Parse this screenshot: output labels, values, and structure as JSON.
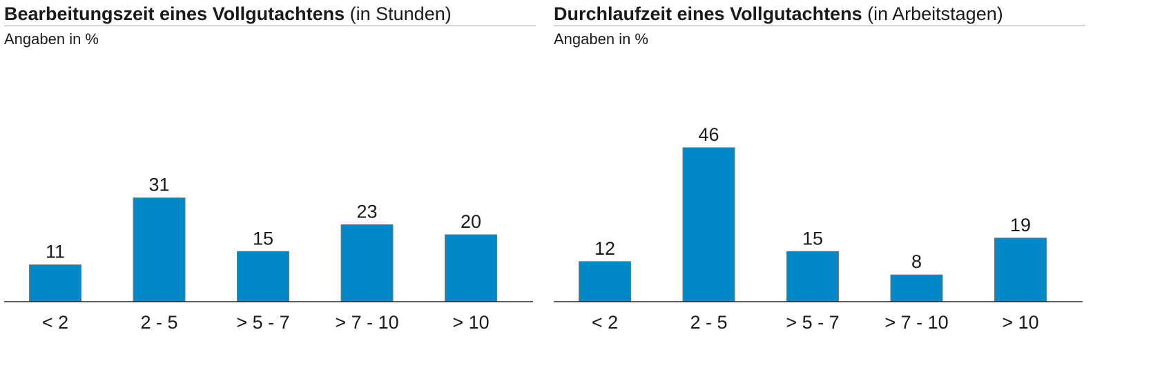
{
  "chart_data": [
    {
      "type": "bar",
      "title": "Bearbeitungszeit eines Vollgutachtens",
      "title_suffix": "(in Stunden)",
      "subtitle": "Angaben in %",
      "categories": [
        "< 2",
        "2 - 5",
        "> 5 - 7",
        "> 7 - 10",
        "> 10"
      ],
      "values": [
        11,
        31,
        15,
        23,
        20
      ],
      "ylim": [
        0,
        50
      ],
      "grid": false,
      "color": "#0088c8"
    },
    {
      "type": "bar",
      "title": "Durchlaufzeit eines Vollgutachtens",
      "title_suffix": "(in Arbeitstagen)",
      "subtitle": "Angaben in %",
      "categories": [
        "< 2",
        "2 - 5",
        "> 5 - 7",
        "> 7 - 10",
        "> 10"
      ],
      "values": [
        12,
        46,
        15,
        8,
        19
      ],
      "ylim": [
        0,
        50
      ],
      "grid": false,
      "color": "#0088c8"
    }
  ]
}
